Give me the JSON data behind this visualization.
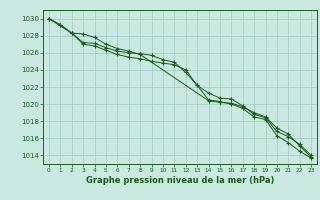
{
  "bg_color": "#c8e8e0",
  "grid_color": "#a0c8c0",
  "line_color": "#1a5c1a",
  "marker_color": "#1a5c1a",
  "xlabel": "Graphe pression niveau de la mer (hPa)",
  "xlabel_fontsize": 6.0,
  "ylabel_ticks": [
    1014,
    1016,
    1018,
    1020,
    1022,
    1024,
    1026,
    1028,
    1030
  ],
  "xlim": [
    -0.5,
    23.5
  ],
  "ylim": [
    1013,
    1031
  ],
  "xtick_labels": [
    "0",
    "1",
    "2",
    "3",
    "4",
    "5",
    "6",
    "7",
    "8",
    "9",
    "10",
    "11",
    "12",
    "13",
    "14",
    "15",
    "16",
    "17",
    "18",
    "19",
    "20",
    "21",
    "22",
    "23"
  ],
  "series": [
    {
      "x": [
        0,
        1,
        2,
        3,
        4,
        5,
        6,
        7,
        8,
        9,
        10,
        11,
        12,
        13,
        14,
        15,
        16,
        17,
        18,
        19,
        20,
        21,
        22,
        23
      ],
      "y": [
        1030,
        1029.2,
        1028.3,
        1027.0,
        1026.8,
        1026.3,
        1025.8,
        1025.5,
        1025.3,
        1025.0,
        1024.8,
        1024.6,
        1024.0,
        1022.2,
        1020.5,
        1020.3,
        1020.0,
        1019.5,
        1018.5,
        1018.2,
        1016.3,
        1015.5,
        1014.5,
        1013.7
      ],
      "marker": "+"
    },
    {
      "x": [
        0,
        1,
        2,
        3,
        4,
        5,
        6,
        7,
        8,
        9,
        10,
        11,
        12,
        13,
        14,
        15,
        16,
        17,
        18,
        19,
        20,
        21,
        22,
        23
      ],
      "y": [
        1030,
        1029.3,
        1028.3,
        1027.2,
        1027.1,
        1026.6,
        1026.2,
        1026.0,
        1025.9,
        1025.7,
        1025.2,
        1024.9,
        1023.7,
        1022.2,
        1021.3,
        1020.7,
        1020.6,
        1019.8,
        1018.8,
        1018.4,
        1016.8,
        1016.2,
        1015.3,
        1014.0
      ],
      "marker": "+"
    },
    {
      "x": [
        0,
        2,
        3,
        4,
        5,
        6,
        7,
        8,
        14,
        15,
        16,
        17,
        18,
        19,
        20,
        21,
        22,
        23
      ],
      "y": [
        1030,
        1028.3,
        1028.2,
        1027.8,
        1027.0,
        1026.5,
        1026.2,
        1025.8,
        1020.4,
        1020.2,
        1020.1,
        1019.7,
        1019.0,
        1018.5,
        1017.2,
        1016.5,
        1015.1,
        1013.8
      ],
      "marker": "+"
    }
  ]
}
